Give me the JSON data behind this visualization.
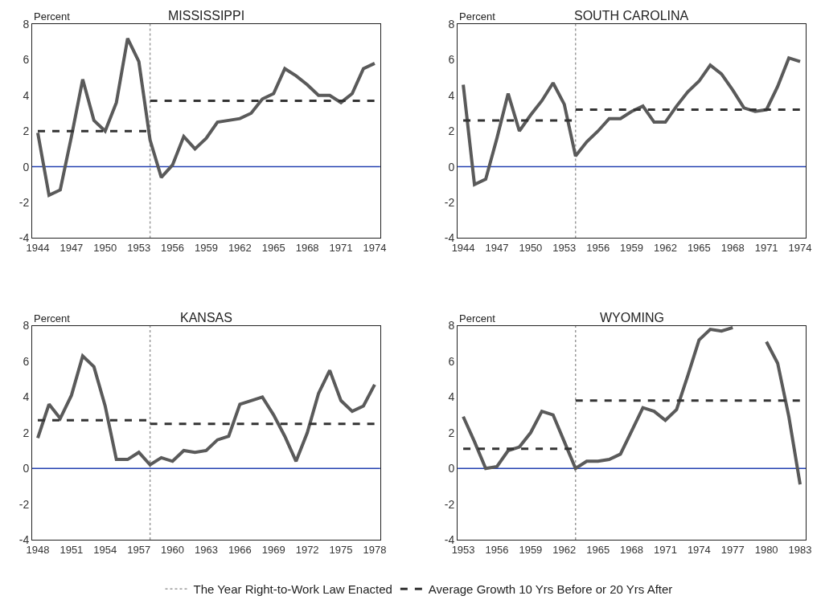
{
  "chart_data": [
    {
      "type": "line",
      "title": "MISSISSIPPI",
      "ylabel": "Percent",
      "xlim": [
        1943.5,
        1974.5
      ],
      "xticks": [
        1944,
        1947,
        1950,
        1953,
        1956,
        1959,
        1962,
        1965,
        1968,
        1971,
        1974
      ],
      "ylim": [
        -4,
        8
      ],
      "yticks": [
        -4,
        -2,
        0,
        2,
        4,
        6,
        8
      ],
      "grid": false,
      "legend": "bottom",
      "line_style": "solid",
      "x": [
        1944,
        1945,
        1946,
        1947,
        1948,
        1949,
        1950,
        1951,
        1952,
        1953,
        1954,
        1955,
        1956,
        1957,
        1958,
        1959,
        1960,
        1961,
        1962,
        1963,
        1964,
        1965,
        1966,
        1967,
        1968,
        1969,
        1970,
        1971,
        1972,
        1973,
        1974
      ],
      "series": [
        {
          "color": "#5a5a5a",
          "values": [
            1.9,
            -1.6,
            -1.3,
            1.7,
            4.9,
            2.6,
            2.0,
            3.6,
            7.2,
            5.9,
            1.5,
            -0.6,
            0.1,
            1.7,
            1.0,
            1.6,
            2.5,
            2.6,
            2.7,
            3.0,
            3.8,
            4.1,
            5.5,
            5.1,
            4.6,
            4.0,
            4.0,
            3.6,
            4.1,
            5.5,
            5.8
          ]
        },
        {
          "name": "Average Growth 10 Yrs Before or 20 Yrs After",
          "color": "#333333",
          "line_style": "dashed",
          "x": [
            1944,
            1954
          ],
          "values": [
            2.0,
            2.0
          ]
        },
        {
          "color": "#333333",
          "line_style": "dashed",
          "x": [
            1954,
            1974
          ],
          "values": [
            3.7,
            3.7
          ]
        }
      ],
      "ref_lines": [
        {
          "axis": "x",
          "value": 1954,
          "label": "The Year Right-to-Work Law Enacted",
          "color": "#9a9a9a",
          "line_style": "dotted"
        },
        {
          "axis": "y",
          "value": 0,
          "color": "#2340b0",
          "line_style": "solid"
        }
      ]
    },
    {
      "type": "line",
      "title": "SOUTH CAROLINA",
      "ylabel": "Percent",
      "xlim": [
        1943.5,
        1974.5
      ],
      "xticks": [
        1944,
        1947,
        1950,
        1953,
        1956,
        1959,
        1962,
        1965,
        1968,
        1971,
        1974
      ],
      "ylim": [
        -4,
        8
      ],
      "yticks": [
        -4,
        -2,
        0,
        2,
        4,
        6,
        8
      ],
      "grid": false,
      "line_style": "solid",
      "x": [
        1944,
        1945,
        1946,
        1947,
        1948,
        1949,
        1950,
        1951,
        1952,
        1953,
        1954,
        1955,
        1956,
        1957,
        1958,
        1959,
        1960,
        1961,
        1962,
        1963,
        1964,
        1965,
        1966,
        1967,
        1968,
        1969,
        1970,
        1971,
        1972,
        1973,
        1974
      ],
      "series": [
        {
          "color": "#5a5a5a",
          "values": [
            4.6,
            -1.0,
            -0.7,
            1.6,
            4.1,
            2.0,
            2.9,
            3.7,
            4.7,
            3.5,
            0.6,
            1.4,
            2.0,
            2.7,
            2.7,
            3.1,
            3.4,
            2.5,
            2.5,
            3.4,
            4.2,
            4.8,
            5.7,
            5.2,
            4.3,
            3.3,
            3.1,
            3.2,
            4.5,
            6.1,
            5.9
          ]
        },
        {
          "color": "#333333",
          "line_style": "dashed",
          "x": [
            1944,
            1954
          ],
          "values": [
            2.6,
            2.6
          ]
        },
        {
          "color": "#333333",
          "line_style": "dashed",
          "x": [
            1954,
            1974
          ],
          "values": [
            3.2,
            3.2
          ]
        }
      ],
      "ref_lines": [
        {
          "axis": "x",
          "value": 1954,
          "color": "#9a9a9a",
          "line_style": "dotted"
        },
        {
          "axis": "y",
          "value": 0,
          "color": "#2340b0",
          "line_style": "solid"
        }
      ]
    },
    {
      "type": "line",
      "title": "KANSAS",
      "ylabel": "Percent",
      "xlim": [
        1947.5,
        1978.5
      ],
      "xticks": [
        1948,
        1951,
        1954,
        1957,
        1960,
        1963,
        1966,
        1969,
        1972,
        1975,
        1978
      ],
      "ylim": [
        -4,
        8
      ],
      "yticks": [
        -4,
        -2,
        0,
        2,
        4,
        6,
        8
      ],
      "grid": false,
      "line_style": "solid",
      "x": [
        1948,
        1949,
        1950,
        1951,
        1952,
        1953,
        1954,
        1955,
        1956,
        1957,
        1958,
        1959,
        1960,
        1961,
        1962,
        1963,
        1964,
        1965,
        1966,
        1967,
        1968,
        1969,
        1970,
        1971,
        1972,
        1973,
        1974,
        1975,
        1976,
        1977,
        1978
      ],
      "series": [
        {
          "color": "#5a5a5a",
          "values": [
            1.7,
            3.6,
            2.8,
            4.1,
            6.3,
            5.7,
            3.5,
            0.5,
            0.5,
            0.9,
            0.2,
            0.6,
            0.4,
            1.0,
            0.9,
            1.0,
            1.6,
            1.8,
            3.6,
            3.8,
            4.0,
            3.0,
            1.8,
            0.4,
            2.0,
            4.2,
            5.5,
            3.8,
            3.2,
            3.5,
            4.7
          ]
        },
        {
          "color": "#333333",
          "line_style": "dashed",
          "x": [
            1948,
            1958
          ],
          "values": [
            2.7,
            2.7
          ]
        },
        {
          "color": "#333333",
          "line_style": "dashed",
          "x": [
            1958,
            1978
          ],
          "values": [
            2.5,
            2.5
          ]
        }
      ],
      "ref_lines": [
        {
          "axis": "x",
          "value": 1958,
          "color": "#9a9a9a",
          "line_style": "dotted"
        },
        {
          "axis": "y",
          "value": 0,
          "color": "#2340b0",
          "line_style": "solid"
        }
      ]
    },
    {
      "type": "line",
      "title": "WYOMING",
      "ylabel": "Percent",
      "xlim": [
        1952.5,
        1983.5
      ],
      "xticks": [
        1953,
        1956,
        1959,
        1962,
        1965,
        1968,
        1971,
        1974,
        1977,
        1980,
        1983
      ],
      "ylim": [
        -4,
        8
      ],
      "yticks": [
        -4,
        -2,
        0,
        2,
        4,
        6,
        8
      ],
      "grid": false,
      "line_style": "solid",
      "x": [
        1953,
        1954,
        1955,
        1956,
        1957,
        1958,
        1959,
        1960,
        1961,
        1962,
        1963,
        1964,
        1965,
        1966,
        1967,
        1968,
        1969,
        1970,
        1971,
        1972,
        1973,
        1974,
        1975,
        1976,
        1977,
        1978,
        1979,
        1980,
        1981,
        1982,
        1983
      ],
      "series": [
        {
          "color": "#5a5a5a",
          "values": [
            2.9,
            1.5,
            0.0,
            0.1,
            1.0,
            1.2,
            2.0,
            3.2,
            3.0,
            1.5,
            0.0,
            0.4,
            0.4,
            0.5,
            0.8,
            2.1,
            3.4,
            3.2,
            2.7,
            3.3,
            5.2,
            7.2,
            7.8,
            7.7,
            7.9,
            null,
            null,
            7.1,
            5.9,
            2.9,
            -0.9
          ]
        },
        {
          "color": "#333333",
          "line_style": "dashed",
          "x": [
            1953,
            1963
          ],
          "values": [
            1.1,
            1.1
          ]
        },
        {
          "color": "#333333",
          "line_style": "dashed",
          "x": [
            1963,
            1983
          ],
          "values": [
            3.8,
            3.8
          ]
        }
      ],
      "ref_lines": [
        {
          "axis": "x",
          "value": 1963,
          "color": "#9a9a9a",
          "line_style": "dotted"
        },
        {
          "axis": "y",
          "value": 0,
          "color": "#2340b0",
          "line_style": "solid"
        }
      ]
    }
  ]
}
